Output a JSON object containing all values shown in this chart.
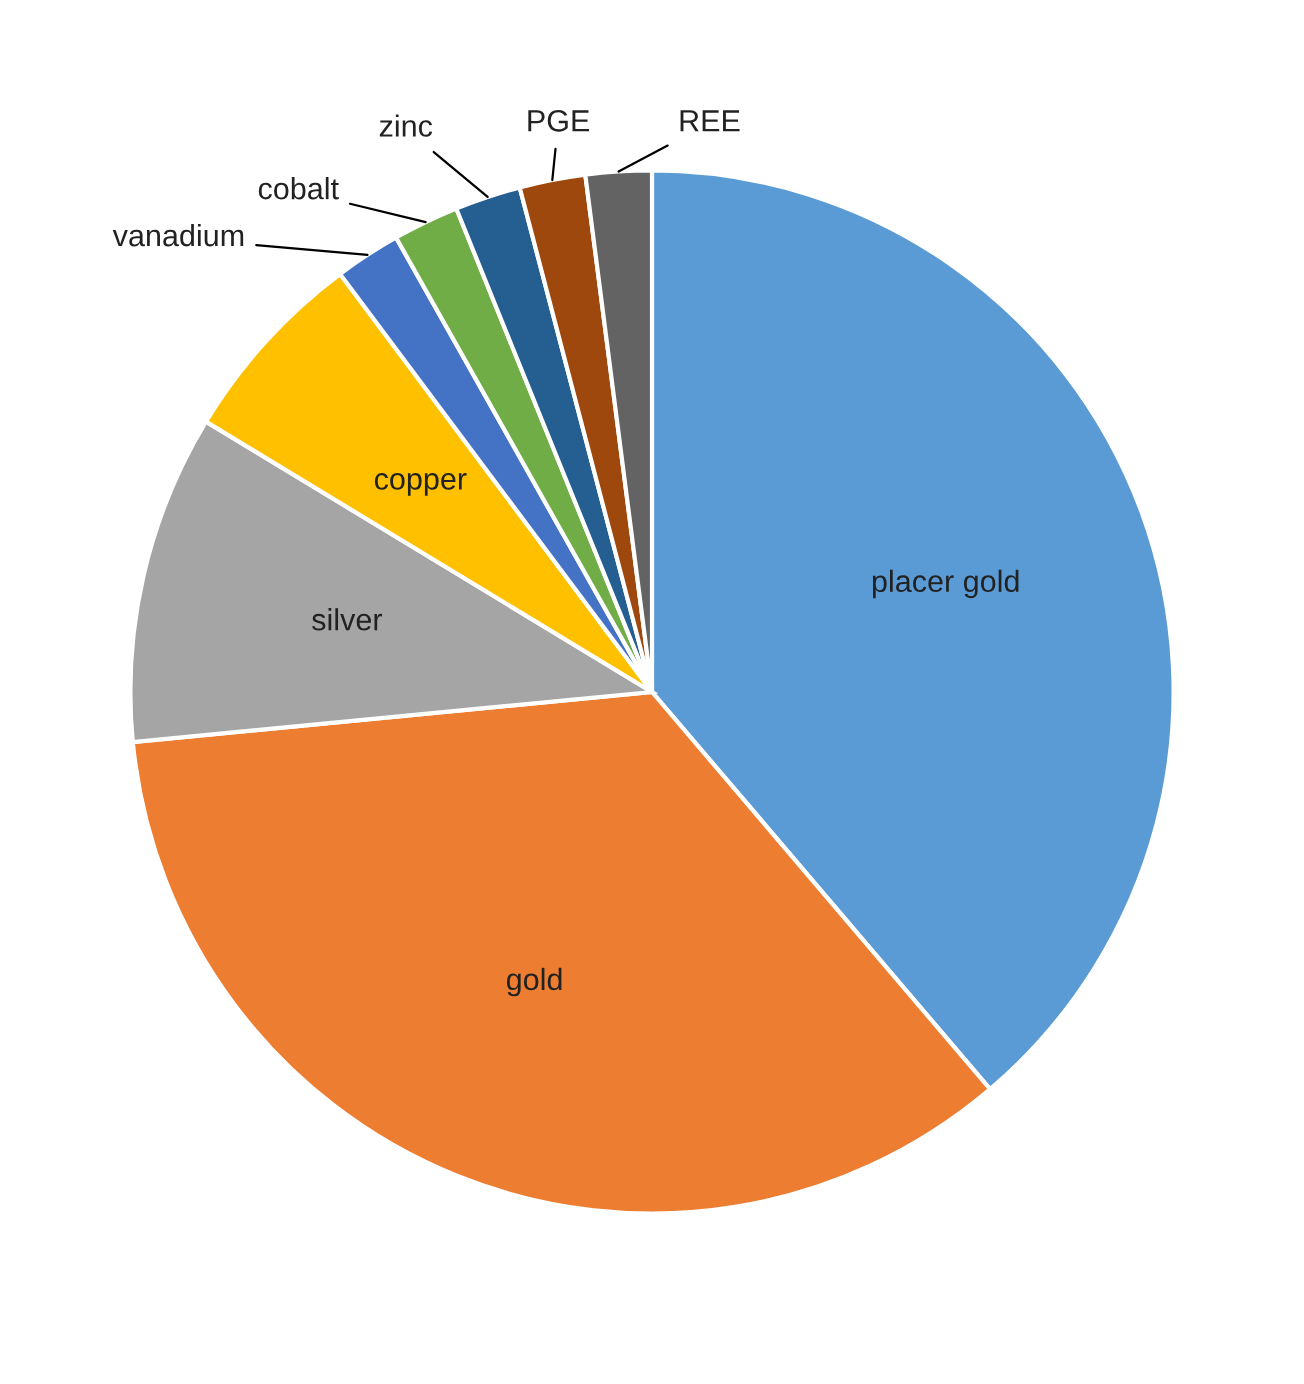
{
  "chart_data": {
    "type": "pie",
    "categories": [
      "placer gold",
      "gold",
      "silver",
      "copper",
      "vanadium",
      "cobalt",
      "zinc",
      "PGE",
      "REE"
    ],
    "values": [
      38,
      34,
      10,
      6,
      2,
      2,
      2,
      2,
      2
    ],
    "colors": [
      "#5b9bd5",
      "#ed7d31",
      "#a5a5a5",
      "#ffc000",
      "#4472c4",
      "#70ad47",
      "#255e91",
      "#9e480e",
      "#636363"
    ]
  }
}
